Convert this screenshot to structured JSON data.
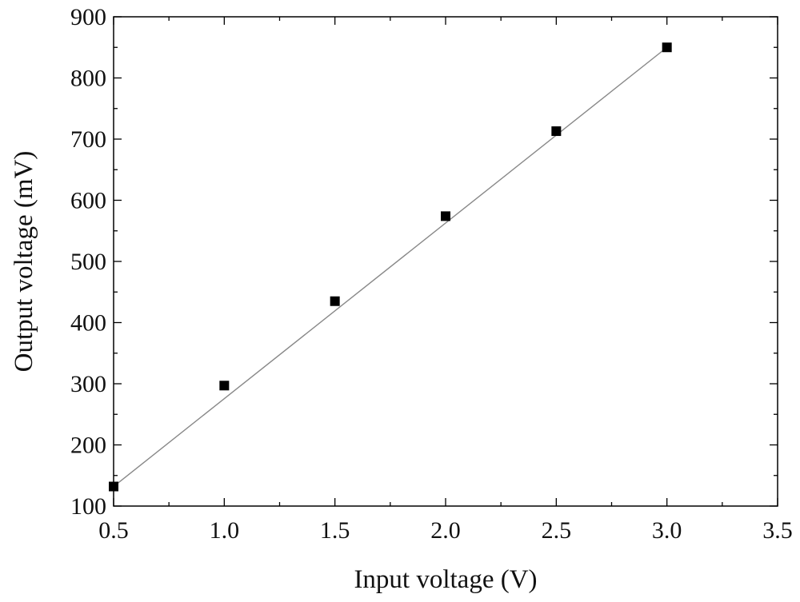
{
  "chart_data": {
    "type": "scatter",
    "title": "",
    "xlabel": "Input voltage (V)",
    "ylabel": "Output voltage (mV)",
    "xlim": [
      0.5,
      3.5
    ],
    "ylim": [
      100,
      900
    ],
    "xticks": [
      "0.5",
      "1.0",
      "1.5",
      "2.0",
      "2.5",
      "3.0",
      "3.5"
    ],
    "yticks": [
      "100",
      "200",
      "300",
      "400",
      "500",
      "600",
      "700",
      "800",
      "900"
    ],
    "grid": false,
    "legend": "none",
    "series": [
      {
        "marker": "square",
        "color": "#000000",
        "x": [
          0.5,
          1.0,
          1.5,
          2.0,
          2.5,
          3.0
        ],
        "y": [
          132,
          297,
          435,
          574,
          713,
          850
        ]
      }
    ],
    "fit_line": {
      "color": "#888888",
      "x": [
        0.5,
        3.0
      ],
      "y": [
        132,
        850
      ]
    }
  }
}
